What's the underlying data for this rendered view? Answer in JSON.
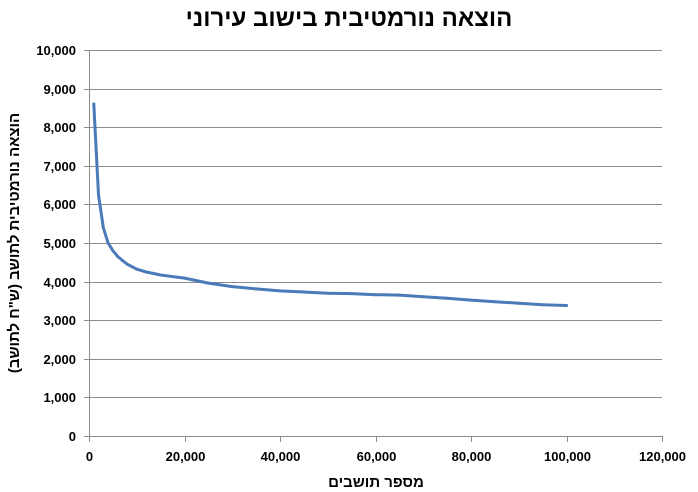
{
  "chart_data": {
    "type": "line",
    "title": "הוצאה נורמטיבית בישוב עירוני",
    "xlabel": "מספר תושבים",
    "ylabel": "הוצאה נורמטיבית לתושב (ש\"ח לתושב)",
    "xlim": [
      0,
      120000
    ],
    "ylim": [
      0,
      10000
    ],
    "x_ticks": [
      0,
      20000,
      40000,
      60000,
      80000,
      100000,
      120000
    ],
    "y_ticks": [
      0,
      1000,
      2000,
      3000,
      4000,
      5000,
      6000,
      7000,
      8000,
      9000,
      10000
    ],
    "x_tick_labels": [
      "0",
      "20,000",
      "40,000",
      "60,000",
      "80,000",
      "100,000",
      "120,000"
    ],
    "y_tick_labels": [
      "0",
      "1,000",
      "2,000",
      "3,000",
      "4,000",
      "5,000",
      "6,000",
      "7,000",
      "8,000",
      "9,000",
      "10,000"
    ],
    "grid": "horizontal",
    "legend": "none",
    "series": [
      {
        "color": "#4a7ab8",
        "x": [
          1000,
          2000,
          3000,
          4000,
          5000,
          6000,
          7000,
          8000,
          10000,
          12000,
          15000,
          20000,
          25000,
          30000,
          35000,
          40000,
          45000,
          50000,
          55000,
          60000,
          65000,
          70000,
          75000,
          80000,
          85000,
          90000,
          95000,
          100000
        ],
        "y": [
          8600,
          6250,
          5400,
          5000,
          4800,
          4650,
          4550,
          4450,
          4320,
          4250,
          4170,
          4090,
          3960,
          3870,
          3810,
          3760,
          3730,
          3700,
          3690,
          3660,
          3650,
          3610,
          3570,
          3520,
          3480,
          3440,
          3400,
          3380
        ]
      }
    ]
  }
}
